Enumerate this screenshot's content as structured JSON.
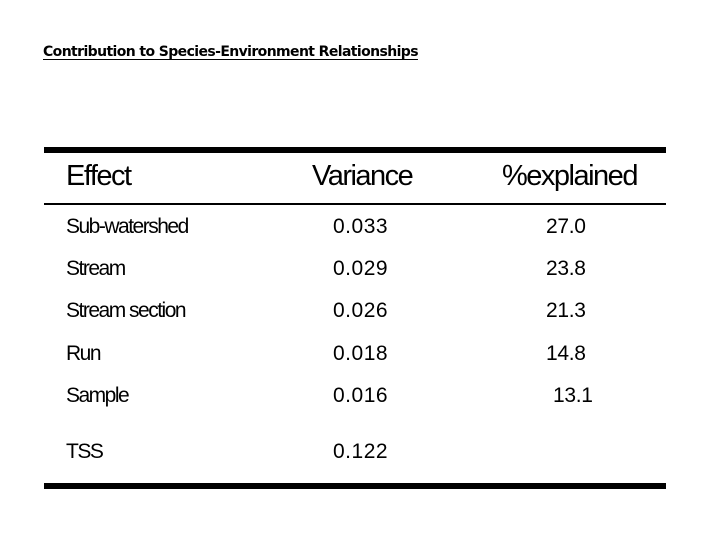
{
  "title": "Contribution to Species-Environment Relationships",
  "table": {
    "headers": {
      "effect": "Effect",
      "variance": "Variance",
      "percent": "%explained"
    },
    "rows": [
      {
        "effect": "Sub-watershed",
        "variance": "0.033",
        "percent": "27.0"
      },
      {
        "effect": "Stream",
        "variance": "0.029",
        "percent": "23.8"
      },
      {
        "effect": "Stream section",
        "variance": "0.026",
        "percent": "21.3"
      },
      {
        "effect": "Run",
        "variance": "0.018",
        "percent": "14.8"
      },
      {
        "effect": "Sample",
        "variance": "0.016",
        "percent": "13.1"
      },
      {
        "effect": "TSS",
        "variance": "0.122",
        "percent": ""
      }
    ]
  }
}
